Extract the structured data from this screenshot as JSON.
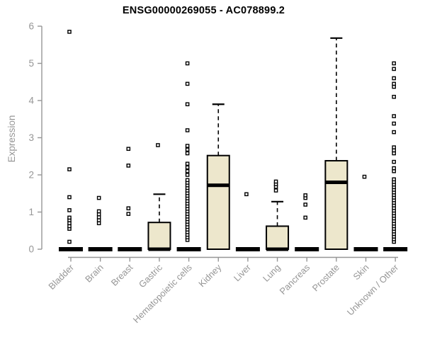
{
  "chart_data": {
    "type": "boxplot",
    "title": "ENSG00000269055 - AC078899.2",
    "ylabel": "Expression",
    "xlabel": "",
    "ylim": [
      0,
      6
    ],
    "yticks": [
      0,
      1,
      2,
      3,
      4,
      5,
      6
    ],
    "grid": false,
    "legend": "none",
    "colors": {
      "box_fill": "#EDE7CC",
      "box_stroke": "#000000",
      "median": "#000000",
      "whisker": "#000000",
      "outlier_stroke": "#000000",
      "outlier_fill": "#ffffff",
      "axis": "#969696",
      "tick_label": "#969696",
      "title": "#000000",
      "background": "#ffffff"
    },
    "categories": [
      "Bladder",
      "Brain",
      "Breast",
      "Gastric",
      "Hematopoietic cells",
      "Kidney",
      "Liver",
      "Lung",
      "Pancreas",
      "Prostate",
      "Skin",
      "Unknown / Other"
    ],
    "series": [
      {
        "category": "Bladder",
        "q1": 0,
        "median": 0,
        "q3": 0,
        "whisker_low": 0,
        "whisker_high": 0,
        "outliers": [
          0.2,
          0.55,
          0.62,
          0.7,
          0.78,
          0.85,
          1.05,
          1.4,
          2.15,
          5.85
        ]
      },
      {
        "category": "Brain",
        "q1": 0,
        "median": 0,
        "q3": 0,
        "whisker_low": 0,
        "whisker_high": 0,
        "outliers": [
          0.7,
          0.78,
          0.86,
          0.94,
          1.02,
          1.38
        ]
      },
      {
        "category": "Breast",
        "q1": 0,
        "median": 0,
        "q3": 0,
        "whisker_low": 0,
        "whisker_high": 0,
        "outliers": [
          0.95,
          1.1,
          2.25,
          2.7
        ]
      },
      {
        "category": "Gastric",
        "q1": 0,
        "median": 0,
        "q3": 0.72,
        "whisker_low": 0,
        "whisker_high": 1.48,
        "outliers": [
          2.8
        ]
      },
      {
        "category": "Hematopoietic cells",
        "q1": 0,
        "median": 0,
        "q3": 0,
        "whisker_low": 0,
        "whisker_high": 0,
        "outliers": [
          0.25,
          0.32,
          0.39,
          0.46,
          0.53,
          0.6,
          0.67,
          0.74,
          0.81,
          0.88,
          0.95,
          1.02,
          1.09,
          1.16,
          1.23,
          1.3,
          1.37,
          1.44,
          1.51,
          1.58,
          1.65,
          1.72,
          1.79,
          1.86,
          2.0,
          2.1,
          2.2,
          2.3,
          2.58,
          2.68,
          2.78,
          3.2,
          3.9,
          4.45,
          5.0
        ]
      },
      {
        "category": "Kidney",
        "q1": 0,
        "median": 1.72,
        "q3": 2.52,
        "whisker_low": 0,
        "whisker_high": 3.9,
        "outliers": []
      },
      {
        "category": "Liver",
        "q1": 0,
        "median": 0,
        "q3": 0,
        "whisker_low": 0,
        "whisker_high": 0,
        "outliers": [
          1.48
        ]
      },
      {
        "category": "Lung",
        "q1": 0,
        "median": 0,
        "q3": 0.62,
        "whisker_low": 0,
        "whisker_high": 1.28,
        "outliers": [
          1.58,
          1.68,
          1.75,
          1.82
        ]
      },
      {
        "category": "Pancreas",
        "q1": 0,
        "median": 0,
        "q3": 0,
        "whisker_low": 0,
        "whisker_high": 0,
        "outliers": [
          0.85,
          1.2,
          1.38,
          1.45
        ]
      },
      {
        "category": "Prostate",
        "q1": 0,
        "median": 1.8,
        "q3": 2.38,
        "whisker_low": 0,
        "whisker_high": 5.68,
        "outliers": []
      },
      {
        "category": "Skin",
        "q1": 0,
        "median": 0,
        "q3": 0,
        "whisker_low": 0,
        "whisker_high": 0,
        "outliers": [
          1.95
        ]
      },
      {
        "category": "Unknown / Other",
        "q1": 0,
        "median": 0,
        "q3": 0,
        "whisker_low": 0,
        "whisker_high": 0,
        "outliers": [
          0.2,
          0.27,
          0.34,
          0.41,
          0.48,
          0.55,
          0.62,
          0.69,
          0.76,
          0.83,
          0.9,
          0.97,
          1.04,
          1.11,
          1.18,
          1.25,
          1.32,
          1.39,
          1.46,
          1.53,
          1.6,
          1.67,
          1.74,
          1.81,
          1.88,
          2.1,
          2.18,
          2.35,
          2.58,
          2.66,
          2.74,
          3.15,
          3.38,
          3.58,
          4.1,
          4.37,
          4.45,
          4.6,
          4.85,
          5.0
        ]
      }
    ]
  }
}
